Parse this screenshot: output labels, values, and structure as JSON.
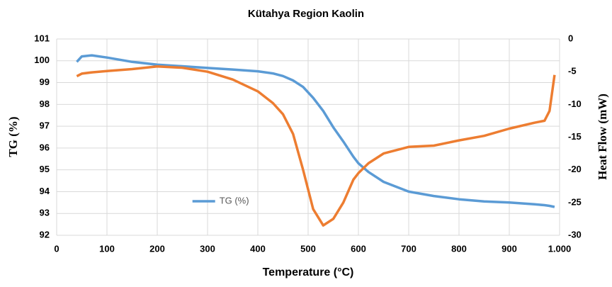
{
  "chart_data": {
    "type": "line",
    "title": "Kütahya Region Kaolin",
    "x_label": "Temperature (°C)",
    "y_label": "TG (%)",
    "y2_label": "Heat Flow (mW)",
    "x": [
      40,
      50,
      70,
      100,
      150,
      200,
      250,
      300,
      350,
      400,
      430,
      450,
      470,
      490,
      510,
      530,
      550,
      570,
      590,
      600,
      620,
      650,
      700,
      750,
      800,
      850,
      900,
      950,
      970,
      980,
      990
    ],
    "series": [
      {
        "name": "TG (%)",
        "color": "#5b9bd5",
        "values": [
          99.95,
          100.2,
          100.25,
          100.15,
          99.95,
          99.82,
          99.75,
          99.67,
          99.6,
          99.52,
          99.42,
          99.3,
          99.1,
          98.8,
          98.3,
          97.7,
          96.95,
          96.3,
          95.6,
          95.3,
          94.9,
          94.45,
          94.0,
          93.8,
          93.65,
          93.55,
          93.5,
          93.42,
          93.38,
          93.35,
          93.3
        ]
      },
      {
        "color": "#ed7d31",
        "axis": "y2",
        "values": [
          -5.7,
          -5.3,
          -5.1,
          -4.9,
          -4.6,
          -4.2,
          -4.4,
          -5.0,
          -6.2,
          -8.0,
          -9.8,
          -11.5,
          -14.5,
          -20,
          -26,
          -28.5,
          -27.5,
          -25,
          -21.5,
          -20.5,
          -19,
          -17.5,
          -16.5,
          -16.3,
          -15.5,
          -14.8,
          -13.7,
          -12.8,
          -12.5,
          -11,
          -5.5
        ]
      }
    ],
    "xlim": [
      0,
      1000
    ],
    "xticks": [
      0,
      100,
      200,
      300,
      400,
      500,
      600,
      700,
      800,
      900,
      {
        "value": 1000,
        "label": "1.000"
      }
    ],
    "ylim": [
      92,
      101
    ],
    "yticks": [
      92,
      93,
      94,
      95,
      96,
      97,
      98,
      99,
      100,
      101
    ],
    "y2lim": [
      -30,
      0
    ],
    "y2ticks": [
      -30,
      -25,
      -20,
      -15,
      -10,
      -5,
      0
    ],
    "grid": true,
    "legend": "lower center"
  }
}
